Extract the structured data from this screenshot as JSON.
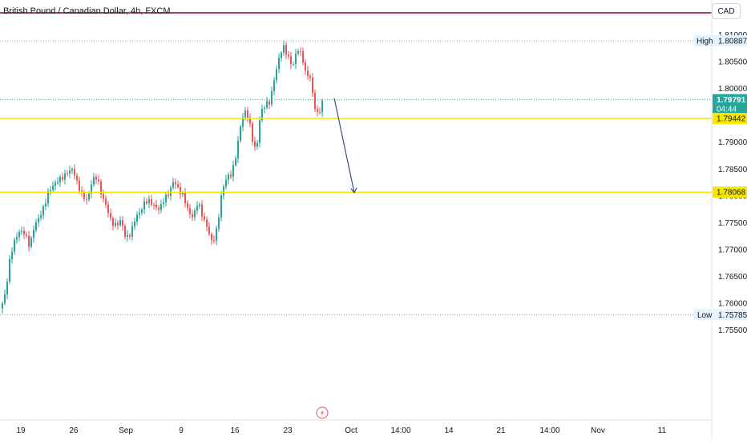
{
  "header": {
    "symbol_title": "British Pound / Canadian Dollar, 4h, FXCM",
    "currency_button": "CAD"
  },
  "colors": {
    "up": "#26a69a",
    "down": "#ef5350",
    "support_line": "#f7e600",
    "top_line": "#800040",
    "dotted_line": "#9598a1",
    "arrow": "#3f4f8f",
    "axis_text": "#131722",
    "last_price_bg": "#26a69a",
    "support_label_bg": "#f7e600"
  },
  "chart_data": {
    "type": "candlestick",
    "symbol": "GBP/CAD",
    "interval": "4h",
    "source": "FXCM",
    "price_axis": {
      "ticks": [
        "1.81000",
        "1.80500",
        "1.80000",
        "1.79500",
        "1.79000",
        "1.78500",
        "1.78000",
        "1.77500",
        "1.77000",
        "1.76500",
        "1.76000",
        "1.75500"
      ],
      "range": [
        1.753,
        1.8125
      ]
    },
    "time_axis": {
      "ticks": [
        "19",
        "26",
        "Sep",
        "9",
        "16",
        "23",
        "Oct",
        "14:00",
        "14",
        "21",
        "14:00",
        "Nov",
        "11"
      ]
    },
    "high": {
      "label": "High",
      "value": 1.80887,
      "text": "1.80887"
    },
    "low": {
      "label": "Low",
      "value": 1.75785,
      "text": "1.75785"
    },
    "last_price": {
      "value": 1.79791,
      "text": "1.79791",
      "countdown": "04:44"
    },
    "support_levels": [
      {
        "value": 1.79442,
        "text": "1.79442"
      },
      {
        "value": 1.78068,
        "text": "1.78068"
      }
    ],
    "top_line_value": 1.8125,
    "projection_arrow": {
      "from_value": 1.7982,
      "to_value": 1.7806
    },
    "candle_anchors": [
      [
        0,
        1.759
      ],
      [
        6,
        1.762
      ],
      [
        12,
        1.769
      ],
      [
        18,
        1.772
      ],
      [
        24,
        1.7735
      ],
      [
        30,
        1.773
      ],
      [
        36,
        1.7705
      ],
      [
        42,
        1.7745
      ],
      [
        48,
        1.776
      ],
      [
        54,
        1.778
      ],
      [
        60,
        1.781
      ],
      [
        66,
        1.782
      ],
      [
        72,
        1.783
      ],
      [
        78,
        1.7835
      ],
      [
        84,
        1.7845
      ],
      [
        90,
        1.785
      ],
      [
        96,
        1.782
      ],
      [
        102,
        1.78
      ],
      [
        108,
        1.779
      ],
      [
        114,
        1.783
      ],
      [
        120,
        1.7835
      ],
      [
        126,
        1.78
      ],
      [
        132,
        1.778
      ],
      [
        138,
        1.775
      ],
      [
        144,
        1.7745
      ],
      [
        150,
        1.7755
      ],
      [
        156,
        1.772
      ],
      [
        162,
        1.773
      ],
      [
        168,
        1.776
      ],
      [
        174,
        1.777
      ],
      [
        180,
        1.779
      ],
      [
        186,
        1.779
      ],
      [
        192,
        1.778
      ],
      [
        198,
        1.7775
      ],
      [
        204,
        1.7795
      ],
      [
        210,
        1.7805
      ],
      [
        216,
        1.783
      ],
      [
        222,
        1.781
      ],
      [
        228,
        1.78
      ],
      [
        234,
        1.777
      ],
      [
        240,
        1.776
      ],
      [
        246,
        1.779
      ],
      [
        252,
        1.776
      ],
      [
        258,
        1.774
      ],
      [
        264,
        1.771
      ],
      [
        270,
        1.774
      ],
      [
        276,
        1.781
      ],
      [
        282,
        1.7835
      ],
      [
        288,
        1.784
      ],
      [
        294,
        1.788
      ],
      [
        300,
        1.794
      ],
      [
        306,
        1.796
      ],
      [
        312,
        1.7925
      ],
      [
        316,
        1.7885
      ],
      [
        320,
        1.79
      ],
      [
        324,
        1.7955
      ],
      [
        330,
        1.797
      ],
      [
        336,
        1.7975
      ],
      [
        340,
        1.801
      ],
      [
        346,
        1.805
      ],
      [
        352,
        1.808
      ],
      [
        358,
        1.806
      ],
      [
        364,
        1.804
      ],
      [
        370,
        1.8075
      ],
      [
        376,
        1.806
      ],
      [
        380,
        1.803
      ],
      [
        386,
        1.802
      ],
      [
        390,
        1.798
      ],
      [
        394,
        1.795
      ],
      [
        398,
        1.796
      ],
      [
        402,
        1.7979
      ]
    ]
  }
}
